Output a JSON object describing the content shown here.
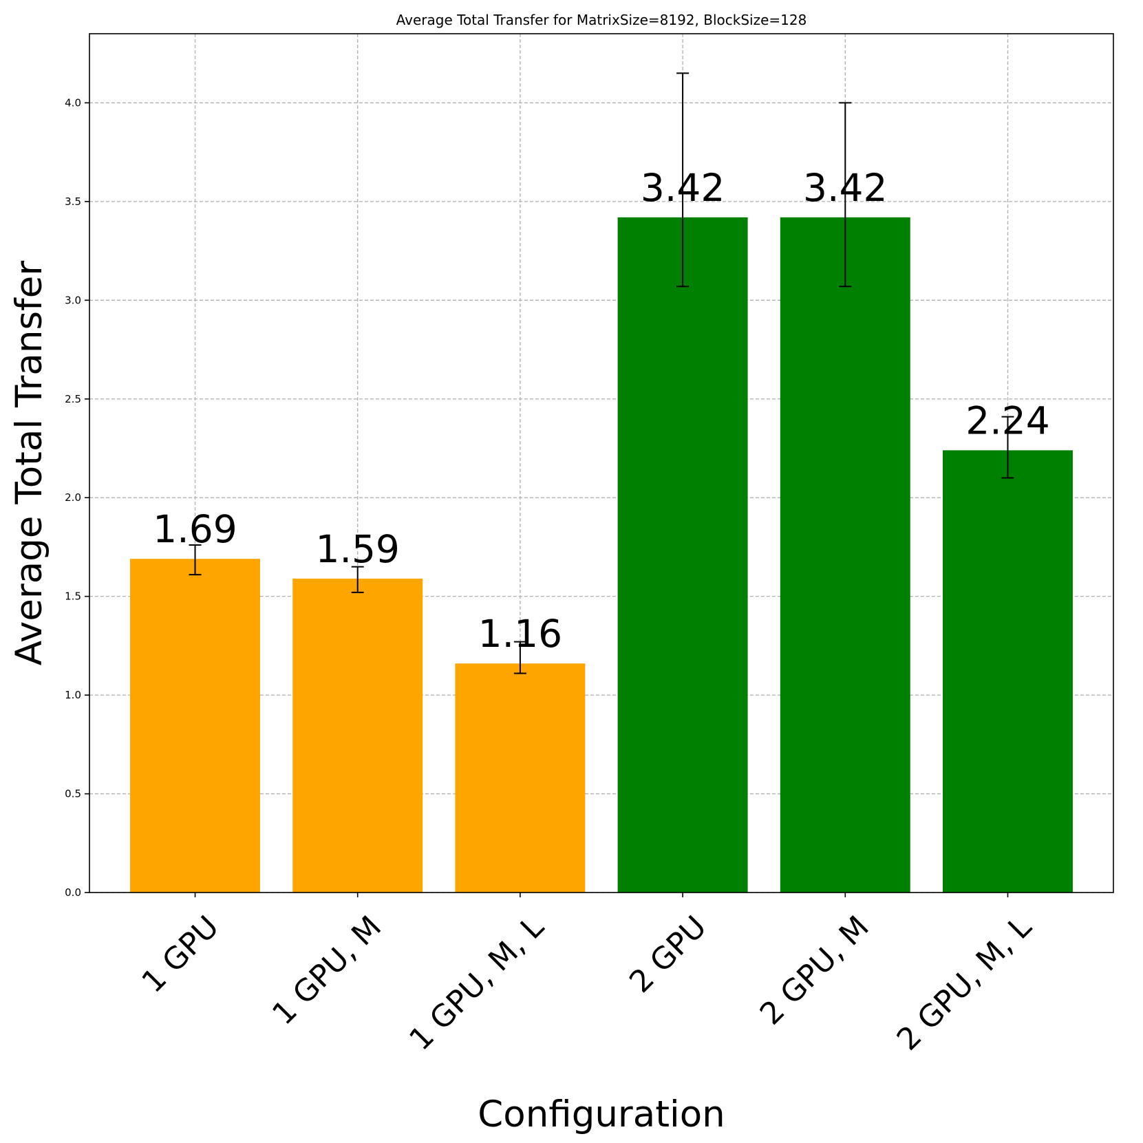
{
  "chart_data": {
    "type": "bar",
    "title": "Average Total Transfer for MatrixSize=8192, BlockSize=128",
    "xlabel": "Configuration",
    "ylabel": "Average Total Transfer",
    "categories": [
      "1 GPU",
      "1 GPU, M",
      "1 GPU, M, L",
      "2 GPU",
      "2 GPU, M",
      "2 GPU, M, L"
    ],
    "values": [
      1.69,
      1.59,
      1.16,
      3.42,
      3.42,
      2.24
    ],
    "value_labels": [
      "1.69",
      "1.59",
      "1.16",
      "3.42",
      "3.42",
      "2.24"
    ],
    "error_low": [
      1.61,
      1.52,
      1.11,
      3.07,
      3.07,
      2.1
    ],
    "error_high": [
      1.76,
      1.65,
      1.27,
      4.15,
      4.0,
      2.41
    ],
    "bar_colors": [
      "#ffa500",
      "#ffa500",
      "#ffa500",
      "#008000",
      "#008000",
      "#008000"
    ],
    "ylim": [
      0,
      4.35
    ],
    "yticks": [
      0.0,
      0.5,
      1.0,
      1.5,
      2.0,
      2.5,
      3.0,
      3.5,
      4.0
    ],
    "ytick_labels": [
      "0.0",
      "0.5",
      "1.0",
      "1.5",
      "2.0",
      "2.5",
      "3.0",
      "3.5",
      "4.0"
    ],
    "grid": true,
    "legend": "none"
  }
}
